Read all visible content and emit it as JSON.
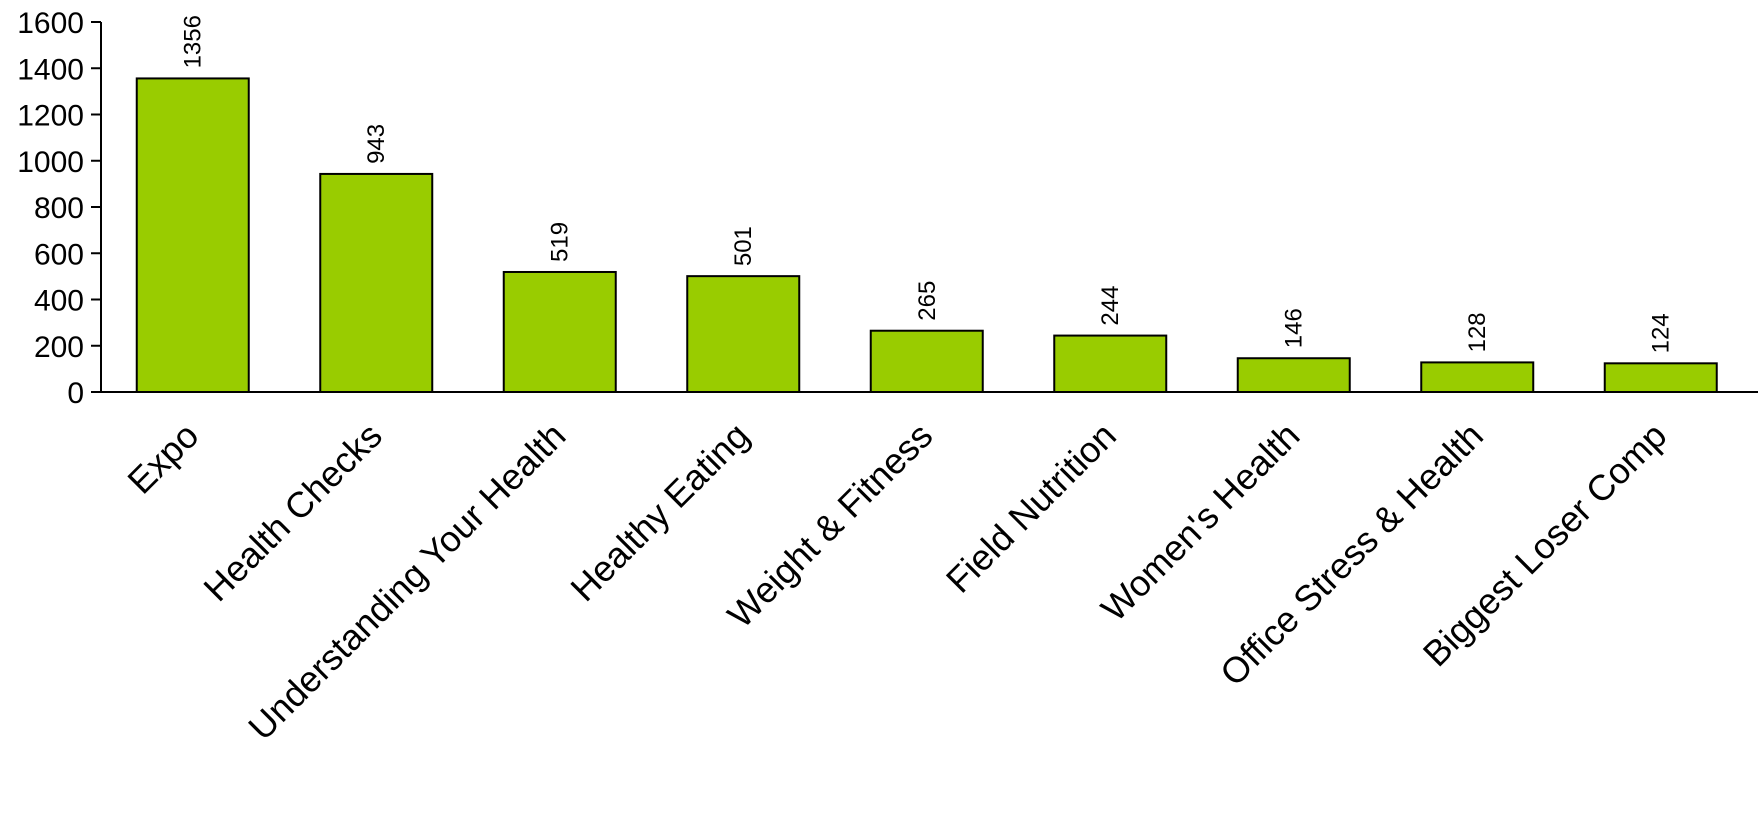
{
  "chart_data": {
    "type": "bar",
    "title": "",
    "xlabel": "",
    "ylabel": "",
    "categories": [
      "Expo",
      "Health Checks",
      "Understanding Your Health",
      "Healthy Eating",
      "Weight & Fitness",
      "Field Nutrition",
      "Women's Health",
      "Office Stress & Health",
      "Biggest Loser Comp"
    ],
    "values": [
      1356,
      943,
      519,
      501,
      265,
      244,
      146,
      128,
      124
    ],
    "value_labels": [
      "1356",
      "943",
      "519",
      "501",
      "265",
      "244",
      "146",
      "128",
      "124"
    ],
    "ylim": [
      0,
      1600
    ],
    "yticks": [
      0,
      200,
      400,
      600,
      800,
      1000,
      1200,
      1400,
      1600
    ],
    "ytick_labels": [
      "0",
      "200",
      "400",
      "600",
      "800",
      "1000",
      "1200",
      "1400",
      "1600"
    ],
    "grid": false,
    "legend": "none",
    "bar_color": "#99cc00"
  }
}
